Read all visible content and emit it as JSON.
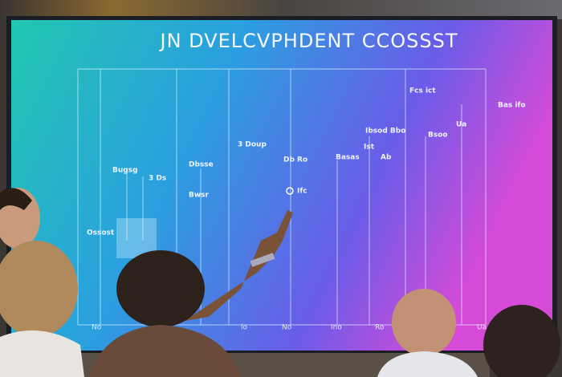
{
  "screen": {
    "title": "JN DVELCVPHDENT CCOSSST",
    "annotations": [
      "Fcs ict",
      "Bas ifo",
      "3  Doup",
      "Bugsg",
      "3 Ds",
      "Dbsse",
      "Bwsr",
      "Ossost",
      "Db Ro",
      "Ifc",
      "Basas",
      "Ibsod Bbo",
      "Bsoo",
      "Ua",
      "Ist",
      "Ab"
    ],
    "axis_labels": [
      "No",
      "lo",
      "No",
      "Ino",
      "Ro",
      "Ua"
    ]
  }
}
